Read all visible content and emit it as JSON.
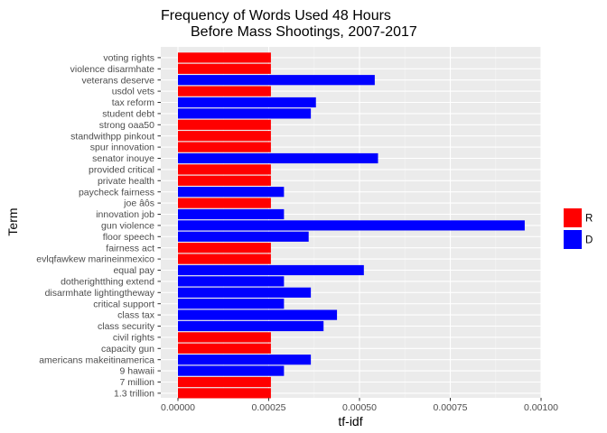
{
  "chart_data": {
    "type": "bar",
    "orientation": "horizontal",
    "title_line1": "Frequency of Words Used 48 Hours",
    "title_line2": "Before Mass Shootings, 2007-2017",
    "xlabel": "tf-idf",
    "ylabel": "Term",
    "xlim": [
      0,
      0.001
    ],
    "xticks": [
      0,
      0.00025,
      0.0005,
      0.00075,
      0.001
    ],
    "xtick_labels": [
      "0.00000",
      "0.00025",
      "0.00050",
      "0.00075",
      "0.00100"
    ],
    "grid": true,
    "legend_position": "right",
    "legend": [
      {
        "key": "R",
        "label": "R",
        "color": "#ff0000"
      },
      {
        "key": "D",
        "label": "D",
        "color": "#0000ff"
      }
    ],
    "categories": [
      "voting rights",
      "violence disarmhate",
      "veterans deserve",
      "usdol vets",
      "tax reform",
      "student debt",
      "strong oaa50",
      "standwithpp pinkout",
      "spur innovation",
      "senator inouye",
      "provided critical",
      "private health",
      "paycheck fairness",
      "joe âôs",
      "innovation job",
      "gun violence",
      "floor speech",
      "fairness act",
      "evlqfawkew marineinmexico",
      "equal pay",
      "dotherightthing extend",
      "disarmhate lightingtheway",
      "critical support",
      "class tax",
      "class security",
      "civil rights",
      "capacity gun",
      "americans makeitinamerica",
      "9 hawaii",
      "7 million",
      "1.3 trillion"
    ],
    "values": [
      0.000256,
      0.000256,
      0.000542,
      0.000256,
      0.00038,
      0.000366,
      0.000256,
      0.000256,
      0.000256,
      0.000551,
      0.000256,
      0.000256,
      0.000292,
      0.000256,
      0.000292,
      0.000955,
      0.00036,
      0.000256,
      0.000256,
      0.000512,
      0.000292,
      0.000366,
      0.000292,
      0.000438,
      0.000401,
      0.000256,
      0.000256,
      0.000366,
      0.000292,
      0.000256,
      0.000256
    ],
    "groups": [
      "R",
      "R",
      "D",
      "R",
      "D",
      "D",
      "R",
      "R",
      "R",
      "D",
      "R",
      "R",
      "D",
      "R",
      "D",
      "D",
      "D",
      "R",
      "R",
      "D",
      "D",
      "D",
      "D",
      "D",
      "D",
      "R",
      "R",
      "D",
      "D",
      "R",
      "R"
    ]
  }
}
